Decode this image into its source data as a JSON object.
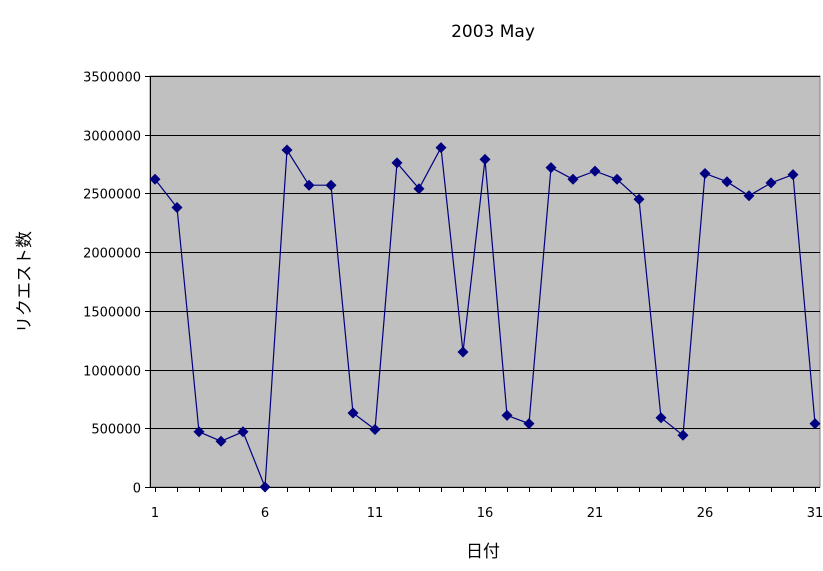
{
  "chart_data": {
    "type": "line",
    "title": "2003 May",
    "xlabel": "日付",
    "ylabel": "リクエスト数",
    "x": [
      1,
      2,
      3,
      4,
      5,
      6,
      7,
      8,
      9,
      10,
      11,
      12,
      13,
      14,
      15,
      16,
      17,
      18,
      19,
      20,
      21,
      22,
      23,
      24,
      25,
      26,
      27,
      28,
      29,
      30,
      31
    ],
    "x_ticks": [
      1,
      6,
      11,
      16,
      21,
      26,
      31
    ],
    "x_tick_labels": [
      "1",
      "6",
      "11",
      "16",
      "21",
      "26",
      "31"
    ],
    "y_ticks": [
      0,
      500000,
      1000000,
      1500000,
      2000000,
      2500000,
      3000000,
      3500000
    ],
    "y_tick_labels": [
      "0",
      "500000",
      "1000000",
      "1500000",
      "2000000",
      "2500000",
      "3000000",
      "3500000"
    ],
    "ylim": [
      0,
      3500000
    ],
    "xlim": [
      1,
      31
    ],
    "grid": true,
    "series": [
      {
        "values": [
          2620000,
          2380000,
          470000,
          390000,
          470000,
          0,
          2870000,
          2570000,
          2570000,
          630000,
          490000,
          2760000,
          2540000,
          2890000,
          1150000,
          2790000,
          610000,
          540000,
          2720000,
          2620000,
          2690000,
          2620000,
          2450000,
          590000,
          440000,
          2670000,
          2600000,
          2480000,
          2590000,
          2660000,
          540000
        ]
      }
    ],
    "colors": {
      "plot_background": "#C0C0C0",
      "series_line": "#000080",
      "grid": "#000000"
    }
  }
}
